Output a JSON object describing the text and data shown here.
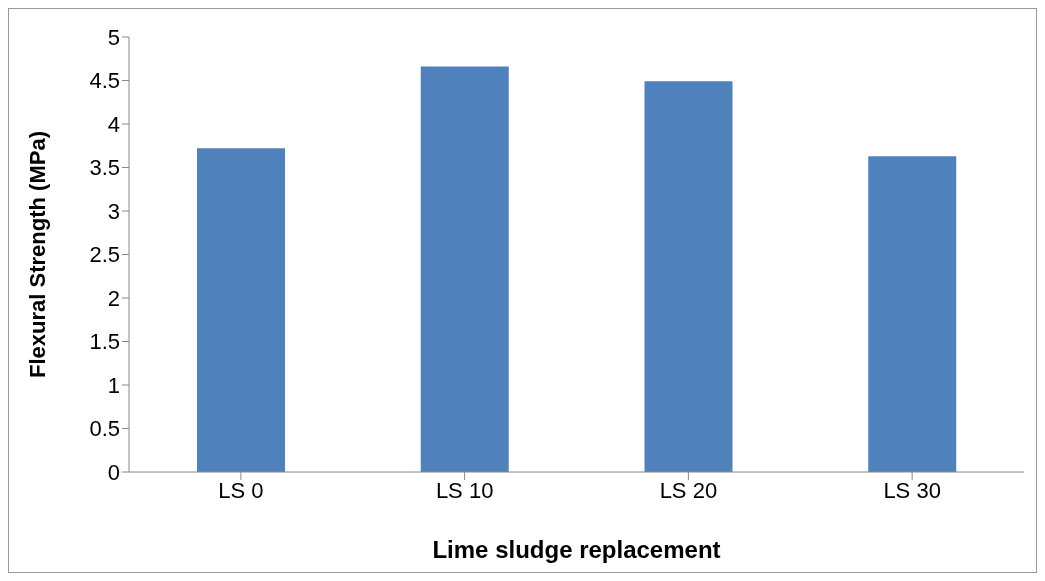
{
  "chart_data": {
    "type": "bar",
    "xlabel": "Lime sludge replacement",
    "ylabel": "Flexural Strength (MPa)",
    "categories": [
      "LS 0",
      "LS 10",
      "LS 20",
      "LS 30"
    ],
    "values": [
      3.72,
      4.66,
      4.49,
      3.63
    ],
    "color": "#4f81bd",
    "ylim": [
      0,
      5
    ],
    "yticks": [
      0,
      0.5,
      1,
      1.5,
      2,
      2.5,
      3,
      3.5,
      4,
      4.5,
      5
    ],
    "grid": false,
    "legend": false
  }
}
